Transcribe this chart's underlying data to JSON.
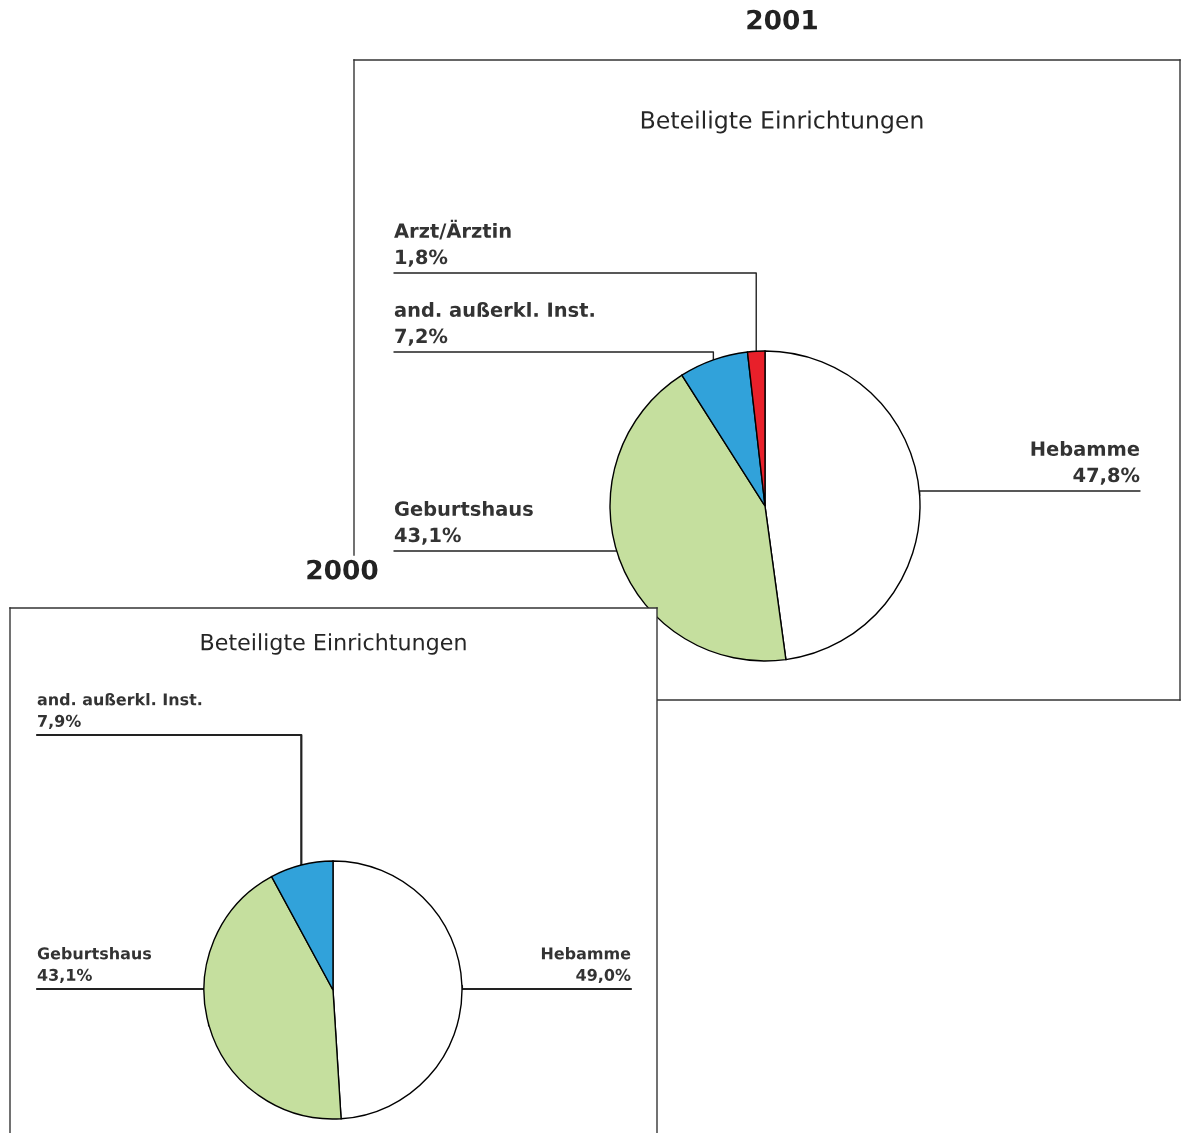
{
  "chart_data": [
    {
      "type": "pie",
      "title": "2001",
      "subtitle": "Beteiligte Einrichtungen",
      "categories": [
        "Hebamme",
        "Geburtshaus",
        "and. außerkl. Inst.",
        "Arzt/Ärztin"
      ],
      "values": [
        47.8,
        43.1,
        7.2,
        1.8
      ],
      "colors": [
        "#ffffff",
        "#c5df9e",
        "#31a2da",
        "#e8202a"
      ],
      "value_labels": [
        "47,8%",
        "43,1%",
        "7,2%",
        "1,8%"
      ]
    },
    {
      "type": "pie",
      "title": "2000",
      "subtitle": "Beteiligte Einrichtungen",
      "categories": [
        "Hebamme",
        "Geburtshaus",
        "and. außerkl. Inst."
      ],
      "values": [
        49.0,
        43.1,
        7.9
      ],
      "colors": [
        "#ffffff",
        "#c5df9e",
        "#31a2da"
      ],
      "value_labels": [
        "49,0%",
        "43,1%",
        "7,9%"
      ]
    }
  ]
}
